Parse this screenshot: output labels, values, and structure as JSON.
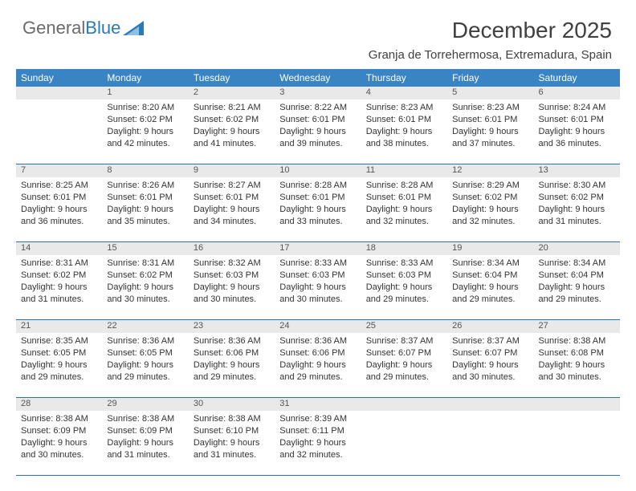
{
  "logo": {
    "text1": "General",
    "text2": "Blue"
  },
  "title": "December 2025",
  "subtitle": "Granja de Torrehermosa, Extremadura, Spain",
  "colors": {
    "header_bg": "#3a84c4",
    "header_text": "#ffffff",
    "daynum_bg": "#e9e9e9",
    "week_border": "#2f6ea8",
    "body_text": "#333333",
    "title_text": "#404040",
    "logo_gray": "#6a6a6a",
    "logo_blue": "#2a7ab8"
  },
  "weekdays": [
    "Sunday",
    "Monday",
    "Tuesday",
    "Wednesday",
    "Thursday",
    "Friday",
    "Saturday"
  ],
  "weeks": [
    {
      "nums": [
        "",
        "1",
        "2",
        "3",
        "4",
        "5",
        "6"
      ],
      "cells": [
        {
          "empty": true
        },
        {
          "sunrise": "Sunrise: 8:20 AM",
          "sunset": "Sunset: 6:02 PM",
          "d1": "Daylight: 9 hours",
          "d2": "and 42 minutes."
        },
        {
          "sunrise": "Sunrise: 8:21 AM",
          "sunset": "Sunset: 6:02 PM",
          "d1": "Daylight: 9 hours",
          "d2": "and 41 minutes."
        },
        {
          "sunrise": "Sunrise: 8:22 AM",
          "sunset": "Sunset: 6:01 PM",
          "d1": "Daylight: 9 hours",
          "d2": "and 39 minutes."
        },
        {
          "sunrise": "Sunrise: 8:23 AM",
          "sunset": "Sunset: 6:01 PM",
          "d1": "Daylight: 9 hours",
          "d2": "and 38 minutes."
        },
        {
          "sunrise": "Sunrise: 8:23 AM",
          "sunset": "Sunset: 6:01 PM",
          "d1": "Daylight: 9 hours",
          "d2": "and 37 minutes."
        },
        {
          "sunrise": "Sunrise: 8:24 AM",
          "sunset": "Sunset: 6:01 PM",
          "d1": "Daylight: 9 hours",
          "d2": "and 36 minutes."
        }
      ]
    },
    {
      "nums": [
        "7",
        "8",
        "9",
        "10",
        "11",
        "12",
        "13"
      ],
      "cells": [
        {
          "sunrise": "Sunrise: 8:25 AM",
          "sunset": "Sunset: 6:01 PM",
          "d1": "Daylight: 9 hours",
          "d2": "and 36 minutes."
        },
        {
          "sunrise": "Sunrise: 8:26 AM",
          "sunset": "Sunset: 6:01 PM",
          "d1": "Daylight: 9 hours",
          "d2": "and 35 minutes."
        },
        {
          "sunrise": "Sunrise: 8:27 AM",
          "sunset": "Sunset: 6:01 PM",
          "d1": "Daylight: 9 hours",
          "d2": "and 34 minutes."
        },
        {
          "sunrise": "Sunrise: 8:28 AM",
          "sunset": "Sunset: 6:01 PM",
          "d1": "Daylight: 9 hours",
          "d2": "and 33 minutes."
        },
        {
          "sunrise": "Sunrise: 8:28 AM",
          "sunset": "Sunset: 6:01 PM",
          "d1": "Daylight: 9 hours",
          "d2": "and 32 minutes."
        },
        {
          "sunrise": "Sunrise: 8:29 AM",
          "sunset": "Sunset: 6:02 PM",
          "d1": "Daylight: 9 hours",
          "d2": "and 32 minutes."
        },
        {
          "sunrise": "Sunrise: 8:30 AM",
          "sunset": "Sunset: 6:02 PM",
          "d1": "Daylight: 9 hours",
          "d2": "and 31 minutes."
        }
      ]
    },
    {
      "nums": [
        "14",
        "15",
        "16",
        "17",
        "18",
        "19",
        "20"
      ],
      "cells": [
        {
          "sunrise": "Sunrise: 8:31 AM",
          "sunset": "Sunset: 6:02 PM",
          "d1": "Daylight: 9 hours",
          "d2": "and 31 minutes."
        },
        {
          "sunrise": "Sunrise: 8:31 AM",
          "sunset": "Sunset: 6:02 PM",
          "d1": "Daylight: 9 hours",
          "d2": "and 30 minutes."
        },
        {
          "sunrise": "Sunrise: 8:32 AM",
          "sunset": "Sunset: 6:03 PM",
          "d1": "Daylight: 9 hours",
          "d2": "and 30 minutes."
        },
        {
          "sunrise": "Sunrise: 8:33 AM",
          "sunset": "Sunset: 6:03 PM",
          "d1": "Daylight: 9 hours",
          "d2": "and 30 minutes."
        },
        {
          "sunrise": "Sunrise: 8:33 AM",
          "sunset": "Sunset: 6:03 PM",
          "d1": "Daylight: 9 hours",
          "d2": "and 29 minutes."
        },
        {
          "sunrise": "Sunrise: 8:34 AM",
          "sunset": "Sunset: 6:04 PM",
          "d1": "Daylight: 9 hours",
          "d2": "and 29 minutes."
        },
        {
          "sunrise": "Sunrise: 8:34 AM",
          "sunset": "Sunset: 6:04 PM",
          "d1": "Daylight: 9 hours",
          "d2": "and 29 minutes."
        }
      ]
    },
    {
      "nums": [
        "21",
        "22",
        "23",
        "24",
        "25",
        "26",
        "27"
      ],
      "cells": [
        {
          "sunrise": "Sunrise: 8:35 AM",
          "sunset": "Sunset: 6:05 PM",
          "d1": "Daylight: 9 hours",
          "d2": "and 29 minutes."
        },
        {
          "sunrise": "Sunrise: 8:36 AM",
          "sunset": "Sunset: 6:05 PM",
          "d1": "Daylight: 9 hours",
          "d2": "and 29 minutes."
        },
        {
          "sunrise": "Sunrise: 8:36 AM",
          "sunset": "Sunset: 6:06 PM",
          "d1": "Daylight: 9 hours",
          "d2": "and 29 minutes."
        },
        {
          "sunrise": "Sunrise: 8:36 AM",
          "sunset": "Sunset: 6:06 PM",
          "d1": "Daylight: 9 hours",
          "d2": "and 29 minutes."
        },
        {
          "sunrise": "Sunrise: 8:37 AM",
          "sunset": "Sunset: 6:07 PM",
          "d1": "Daylight: 9 hours",
          "d2": "and 29 minutes."
        },
        {
          "sunrise": "Sunrise: 8:37 AM",
          "sunset": "Sunset: 6:07 PM",
          "d1": "Daylight: 9 hours",
          "d2": "and 30 minutes."
        },
        {
          "sunrise": "Sunrise: 8:38 AM",
          "sunset": "Sunset: 6:08 PM",
          "d1": "Daylight: 9 hours",
          "d2": "and 30 minutes."
        }
      ]
    },
    {
      "nums": [
        "28",
        "29",
        "30",
        "31",
        "",
        "",
        ""
      ],
      "cells": [
        {
          "sunrise": "Sunrise: 8:38 AM",
          "sunset": "Sunset: 6:09 PM",
          "d1": "Daylight: 9 hours",
          "d2": "and 30 minutes."
        },
        {
          "sunrise": "Sunrise: 8:38 AM",
          "sunset": "Sunset: 6:09 PM",
          "d1": "Daylight: 9 hours",
          "d2": "and 31 minutes."
        },
        {
          "sunrise": "Sunrise: 8:38 AM",
          "sunset": "Sunset: 6:10 PM",
          "d1": "Daylight: 9 hours",
          "d2": "and 31 minutes."
        },
        {
          "sunrise": "Sunrise: 8:39 AM",
          "sunset": "Sunset: 6:11 PM",
          "d1": "Daylight: 9 hours",
          "d2": "and 32 minutes."
        },
        {
          "empty": true
        },
        {
          "empty": true
        },
        {
          "empty": true
        }
      ]
    }
  ]
}
